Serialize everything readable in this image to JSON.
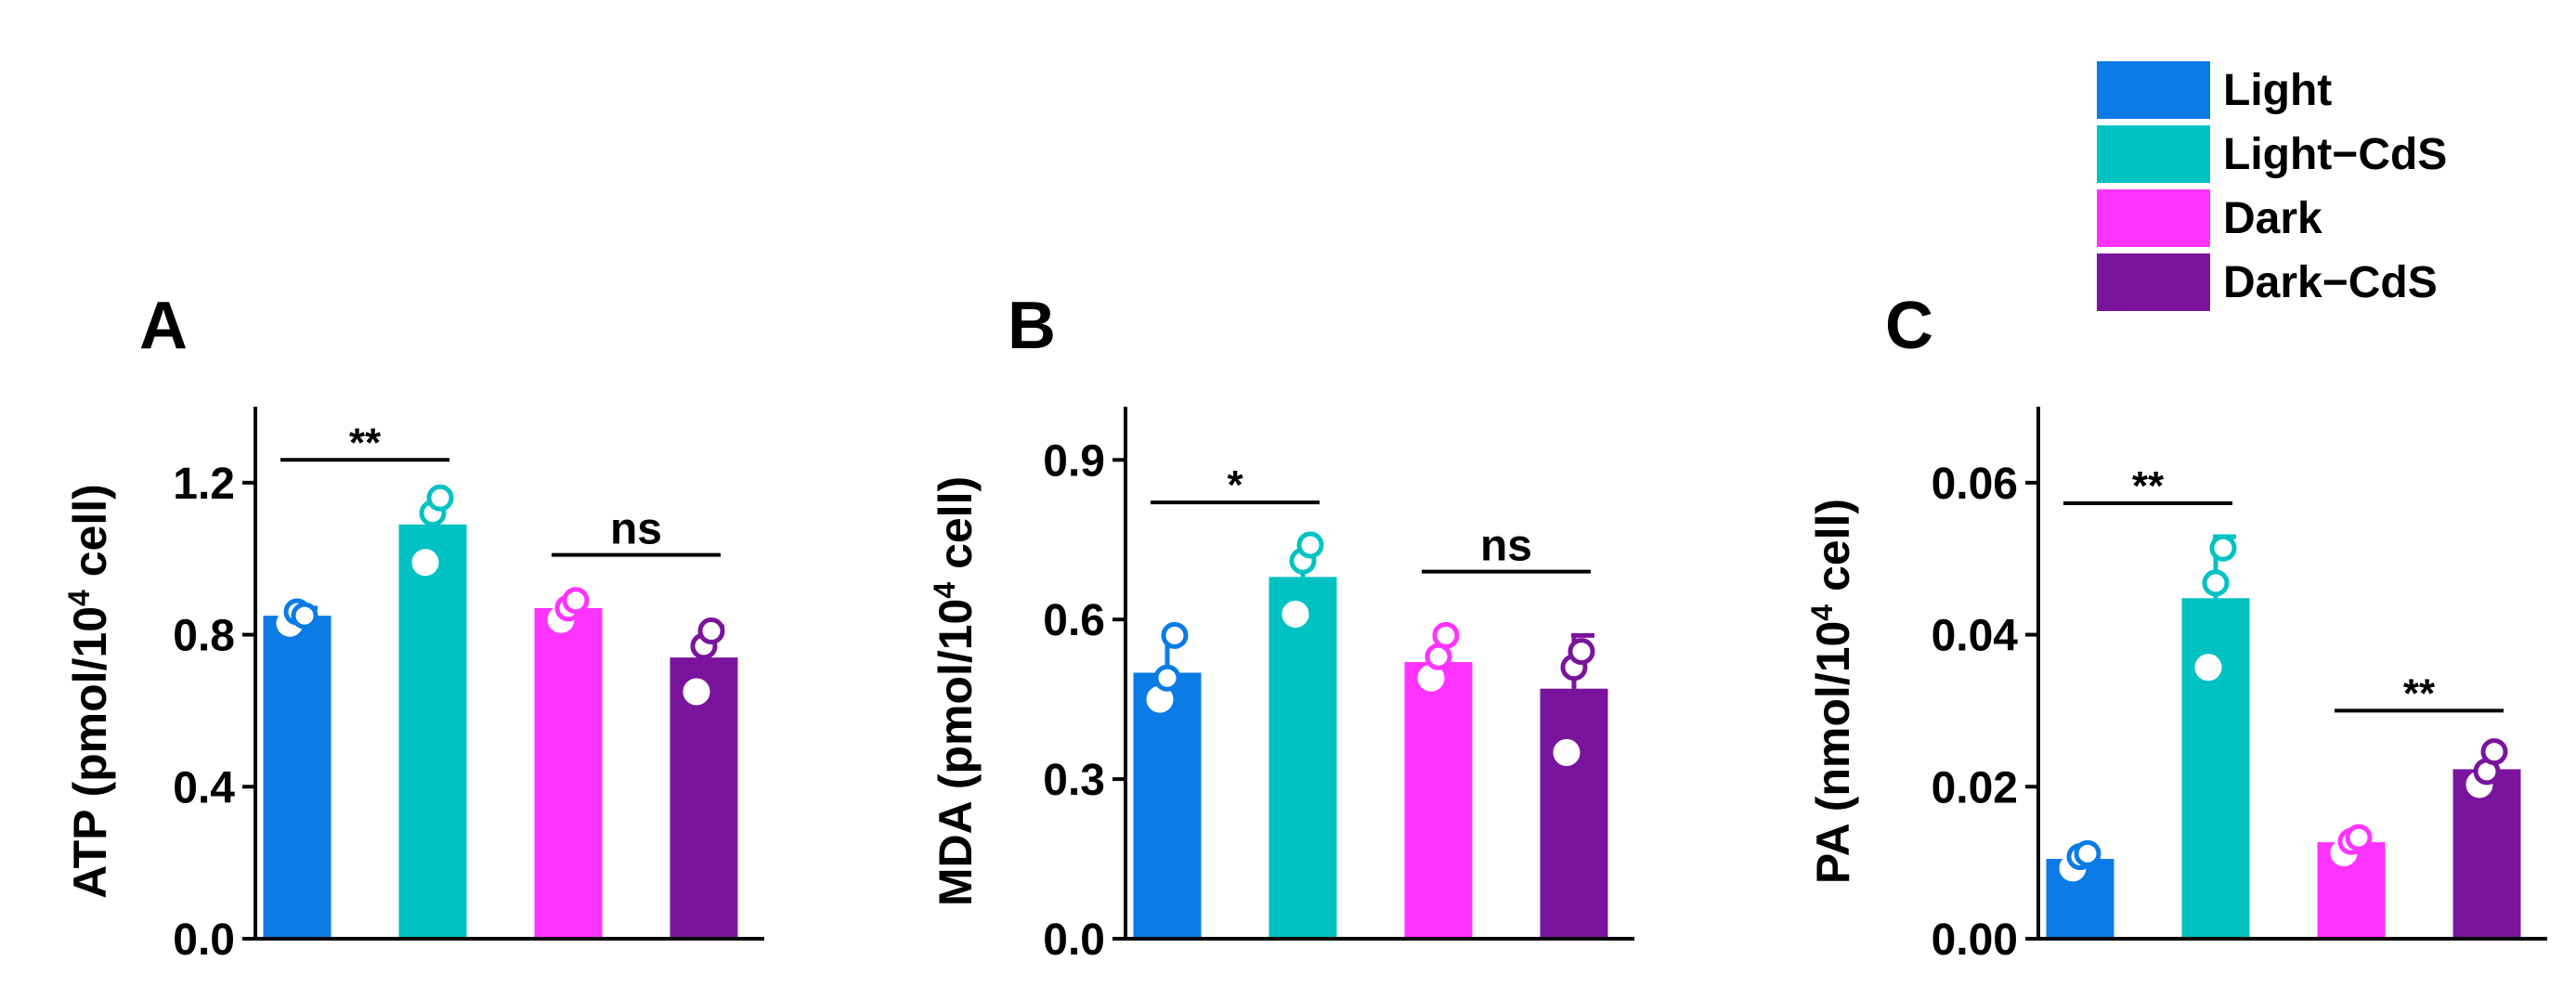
{
  "legend": {
    "items": [
      {
        "label": "Light",
        "color": "#0B7BE6"
      },
      {
        "label": "Light−CdS",
        "color": "#00C2C2"
      },
      {
        "label": "Dark",
        "color": "#FF33FF"
      },
      {
        "label": "Dark−CdS",
        "color": "#7A149C"
      }
    ]
  },
  "chart_data": [
    {
      "type": "bar",
      "panel": "A",
      "ylabel_main": "ATP (pmol/10",
      "ylabel_sup": "4",
      "ylabel_tail": " cell)",
      "categories": [
        "Light",
        "Light−CdS",
        "Dark",
        "Dark−CdS"
      ],
      "values": [
        0.85,
        1.09,
        0.87,
        0.74
      ],
      "errors": [
        0.02,
        0.07,
        0.02,
        0.08
      ],
      "points": [
        [
          0.83,
          0.86,
          0.85
        ],
        [
          0.99,
          1.12,
          1.16
        ],
        [
          0.84,
          0.87,
          0.89
        ],
        [
          0.65,
          0.77,
          0.81
        ]
      ],
      "ylim": [
        0,
        1.4
      ],
      "yticks": [
        0.0,
        0.4,
        0.8,
        1.2
      ],
      "yticklabels": [
        "0.0",
        "0.4",
        "0.8",
        "1.2"
      ],
      "significance": [
        {
          "from": 0,
          "to": 1,
          "y": 1.26,
          "label": "**"
        },
        {
          "from": 2,
          "to": 3,
          "y": 1.01,
          "label": "ns"
        }
      ]
    },
    {
      "type": "bar",
      "panel": "B",
      "ylabel_main": "MDA (pmol/10",
      "ylabel_sup": "4",
      "ylabel_tail": " cell)",
      "categories": [
        "Light",
        "Light−CdS",
        "Dark",
        "Dark−CdS"
      ],
      "values": [
        0.5,
        0.68,
        0.52,
        0.47
      ],
      "errors": [
        0.07,
        0.06,
        0.05,
        0.1
      ],
      "points": [
        [
          0.45,
          0.49,
          0.57
        ],
        [
          0.61,
          0.71,
          0.74
        ],
        [
          0.49,
          0.53,
          0.57
        ],
        [
          0.35,
          0.51,
          0.54
        ]
      ],
      "ylim": [
        0,
        1.0
      ],
      "yticks": [
        0.0,
        0.3,
        0.6,
        0.9
      ],
      "yticklabels": [
        "0.0",
        "0.3",
        "0.6",
        "0.9"
      ],
      "significance": [
        {
          "from": 0,
          "to": 1,
          "y": 0.82,
          "label": "*"
        },
        {
          "from": 2,
          "to": 3,
          "y": 0.69,
          "label": "ns"
        }
      ]
    },
    {
      "type": "bar",
      "panel": "C",
      "ylabel_main": "PA (nmol/10",
      "ylabel_sup": "4",
      "ylabel_tail": " cell)",
      "categories": [
        "Light",
        "Light−CdS",
        "Dark",
        "Dark−CdS"
      ],
      "values": [
        0.0105,
        0.0448,
        0.0127,
        0.0223
      ],
      "errors": [
        0.001,
        0.0081,
        0.0008,
        0.0021
      ],
      "points": [
        [
          0.0093,
          0.0108,
          0.0112
        ],
        [
          0.0357,
          0.0468,
          0.0514
        ],
        [
          0.0113,
          0.0128,
          0.0133
        ],
        [
          0.0203,
          0.022,
          0.0246
        ]
      ],
      "ylim": [
        0,
        0.07
      ],
      "yticks": [
        0.0,
        0.02,
        0.04,
        0.06
      ],
      "yticklabels": [
        "0.00",
        "0.02",
        "0.04",
        "0.06"
      ],
      "significance": [
        {
          "from": 0,
          "to": 1,
          "y": 0.0573,
          "label": "**"
        },
        {
          "from": 2,
          "to": 3,
          "y": 0.03,
          "label": "**"
        }
      ]
    }
  ]
}
